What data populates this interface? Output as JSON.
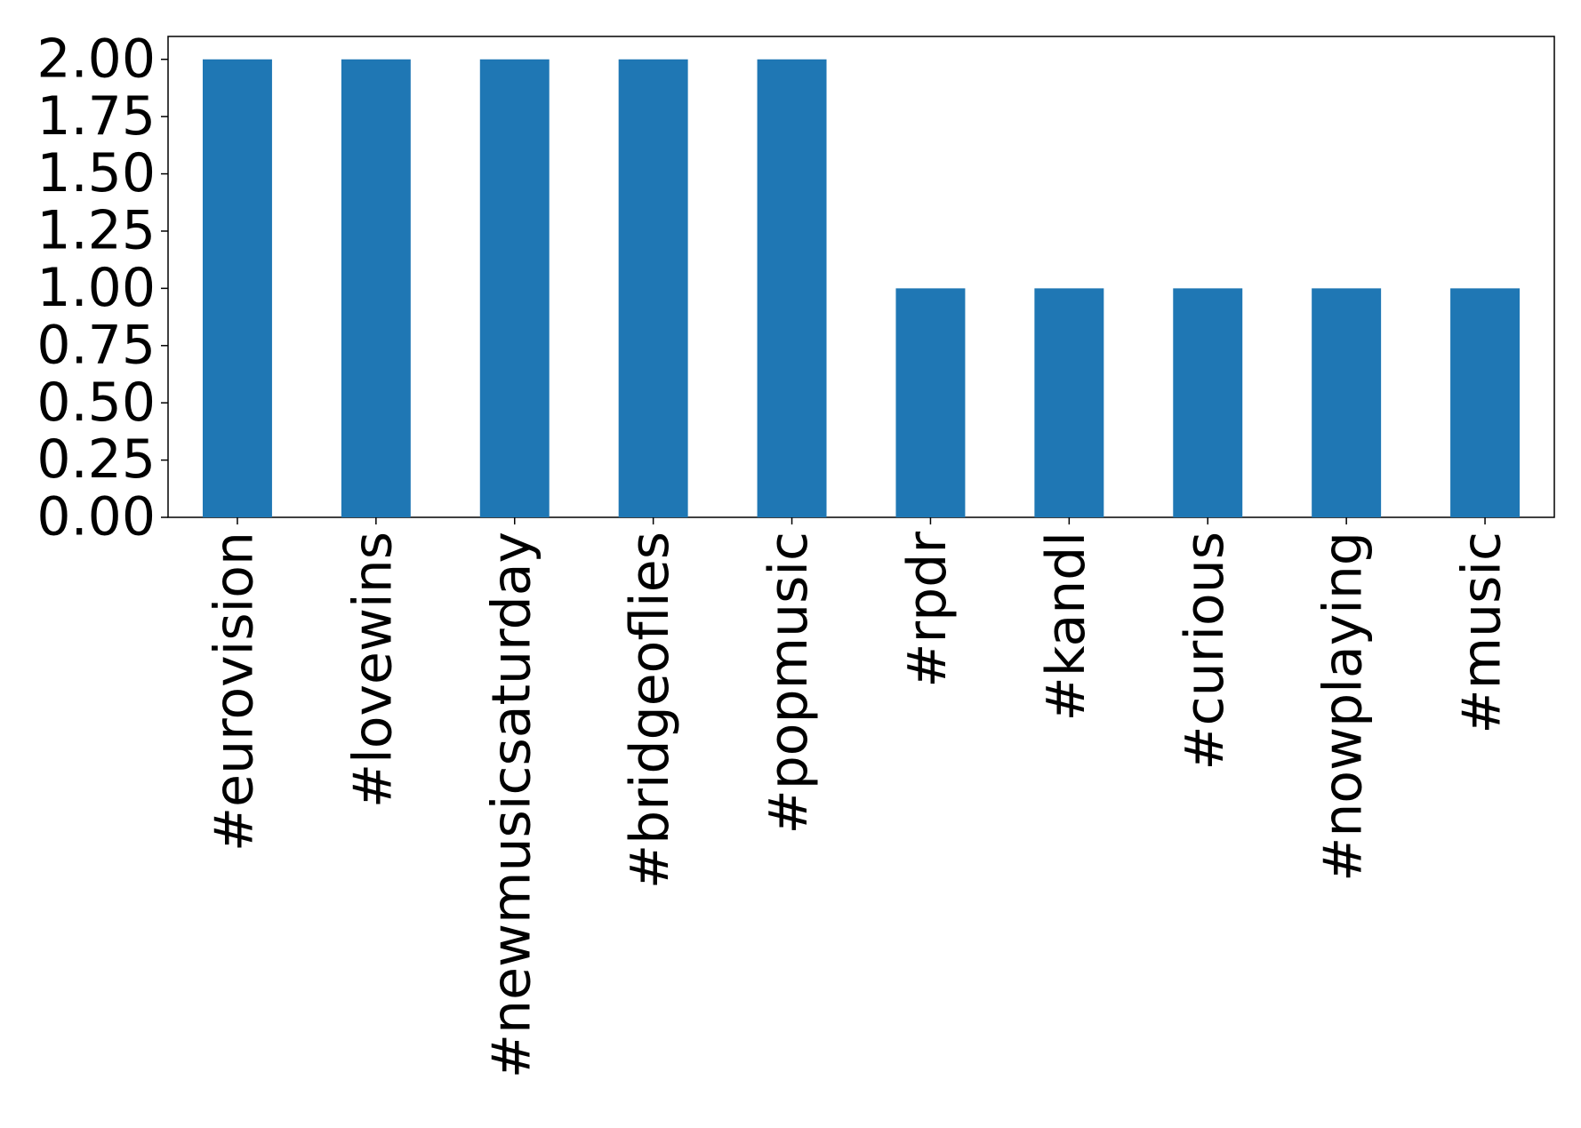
{
  "chart_data": {
    "type": "bar",
    "categories": [
      "#eurovision",
      "#lovewins",
      "#newmusicsaturday",
      "#bridgeoflies",
      "#popmusic",
      "#rpdr",
      "#kandl",
      "#curious",
      "#nowplaying",
      "#music"
    ],
    "values": [
      2,
      2,
      2,
      2,
      2,
      1,
      1,
      1,
      1,
      1
    ],
    "color": "#1f77b4",
    "ylim": [
      0,
      2.1
    ],
    "yticks": [
      {
        "value": 0,
        "label": "0.00"
      },
      {
        "value": 0.25,
        "label": "0.25"
      },
      {
        "value": 0.5,
        "label": "0.50"
      },
      {
        "value": 0.75,
        "label": "0.75"
      },
      {
        "value": 1,
        "label": "1.00"
      },
      {
        "value": 1.25,
        "label": "1.25"
      },
      {
        "value": 1.5,
        "label": "1.50"
      },
      {
        "value": 1.75,
        "label": "1.75"
      },
      {
        "value": 2,
        "label": "2.00"
      }
    ],
    "grid": false
  }
}
